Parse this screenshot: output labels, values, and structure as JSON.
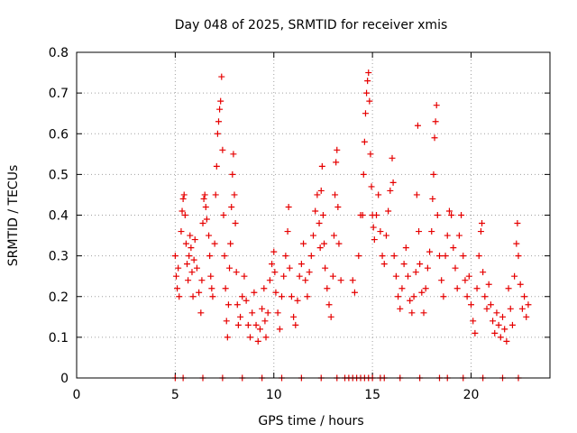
{
  "chart_data": {
    "type": "scatter",
    "title": "Day 048 of 2025, SRMTID for receiver xmis",
    "xlabel": "GPS time / hours",
    "ylabel": "SRMTID / TECUs",
    "xlim": [
      0,
      24
    ],
    "ylim": [
      0,
      0.8
    ],
    "xticks": [
      0,
      5,
      10,
      15,
      20
    ],
    "yticks": [
      0,
      0.1,
      0.2,
      0.3,
      0.4,
      0.5,
      0.6,
      0.7,
      0.8
    ],
    "xtick_labels": [
      "0",
      "5",
      "10",
      "15",
      "20"
    ],
    "ytick_labels": [
      "0",
      "0.1",
      "0.2",
      "0.3",
      "0.4",
      "0.5",
      "0.6",
      "0.7",
      "0.8"
    ],
    "grid": true,
    "marker": "+",
    "color": "#e60000",
    "series": [
      {
        "name": "SRMTID",
        "points": [
          [
            5.0,
            0.3
          ],
          [
            5.05,
            0.25
          ],
          [
            5.1,
            0.22
          ],
          [
            5.15,
            0.27
          ],
          [
            5.2,
            0.2
          ],
          [
            5.3,
            0.36
          ],
          [
            5.35,
            0.41
          ],
          [
            5.4,
            0.44
          ],
          [
            5.45,
            0.45
          ],
          [
            5.5,
            0.4
          ],
          [
            5.55,
            0.33
          ],
          [
            5.6,
            0.28
          ],
          [
            5.65,
            0.24
          ],
          [
            5.7,
            0.3
          ],
          [
            5.75,
            0.35
          ],
          [
            5.8,
            0.32
          ],
          [
            5.85,
            0.26
          ],
          [
            5.9,
            0.2
          ],
          [
            5.95,
            0.29
          ],
          [
            6.0,
            0.34
          ],
          [
            6.1,
            0.27
          ],
          [
            6.2,
            0.21
          ],
          [
            6.3,
            0.16
          ],
          [
            6.35,
            0.24
          ],
          [
            6.4,
            0.38
          ],
          [
            6.45,
            0.44
          ],
          [
            6.5,
            0.45
          ],
          [
            6.55,
            0.42
          ],
          [
            6.6,
            0.39
          ],
          [
            6.7,
            0.35
          ],
          [
            6.75,
            0.3
          ],
          [
            6.8,
            0.25
          ],
          [
            6.85,
            0.22
          ],
          [
            6.9,
            0.2
          ],
          [
            7.0,
            0.33
          ],
          [
            7.05,
            0.45
          ],
          [
            7.1,
            0.52
          ],
          [
            7.15,
            0.6
          ],
          [
            7.2,
            0.63
          ],
          [
            7.25,
            0.66
          ],
          [
            7.3,
            0.68
          ],
          [
            7.35,
            0.74
          ],
          [
            7.4,
            0.56
          ],
          [
            7.45,
            0.4
          ],
          [
            7.5,
            0.3
          ],
          [
            7.55,
            0.22
          ],
          [
            7.6,
            0.14
          ],
          [
            7.65,
            0.1
          ],
          [
            7.7,
            0.18
          ],
          [
            7.75,
            0.27
          ],
          [
            7.8,
            0.33
          ],
          [
            7.85,
            0.42
          ],
          [
            7.9,
            0.5
          ],
          [
            7.95,
            0.55
          ],
          [
            8.0,
            0.45
          ],
          [
            8.05,
            0.38
          ],
          [
            8.1,
            0.26
          ],
          [
            8.15,
            0.18
          ],
          [
            8.2,
            0.13
          ],
          [
            8.3,
            0.15
          ],
          [
            8.4,
            0.2
          ],
          [
            8.5,
            0.25
          ],
          [
            8.6,
            0.19
          ],
          [
            8.7,
            0.13
          ],
          [
            8.8,
            0.1
          ],
          [
            8.9,
            0.16
          ],
          [
            9.0,
            0.21
          ],
          [
            9.1,
            0.13
          ],
          [
            9.2,
            0.09
          ],
          [
            9.3,
            0.12
          ],
          [
            9.4,
            0.17
          ],
          [
            9.5,
            0.22
          ],
          [
            9.55,
            0.14
          ],
          [
            9.6,
            0.1
          ],
          [
            9.7,
            0.16
          ],
          [
            9.8,
            0.24
          ],
          [
            9.9,
            0.28
          ],
          [
            10.0,
            0.31
          ],
          [
            10.05,
            0.26
          ],
          [
            10.1,
            0.21
          ],
          [
            10.2,
            0.16
          ],
          [
            10.3,
            0.12
          ],
          [
            10.4,
            0.2
          ],
          [
            10.5,
            0.25
          ],
          [
            10.6,
            0.3
          ],
          [
            10.7,
            0.36
          ],
          [
            10.75,
            0.42
          ],
          [
            10.8,
            0.27
          ],
          [
            10.9,
            0.2
          ],
          [
            11.0,
            0.15
          ],
          [
            11.1,
            0.13
          ],
          [
            11.2,
            0.19
          ],
          [
            11.3,
            0.25
          ],
          [
            11.4,
            0.28
          ],
          [
            11.5,
            0.33
          ],
          [
            11.6,
            0.24
          ],
          [
            11.7,
            0.2
          ],
          [
            11.8,
            0.26
          ],
          [
            11.9,
            0.3
          ],
          [
            12.0,
            0.35
          ],
          [
            12.1,
            0.41
          ],
          [
            12.2,
            0.45
          ],
          [
            12.3,
            0.38
          ],
          [
            12.35,
            0.32
          ],
          [
            12.4,
            0.46
          ],
          [
            12.45,
            0.52
          ],
          [
            12.5,
            0.4
          ],
          [
            12.55,
            0.33
          ],
          [
            12.6,
            0.27
          ],
          [
            12.7,
            0.22
          ],
          [
            12.8,
            0.18
          ],
          [
            12.9,
            0.15
          ],
          [
            13.0,
            0.25
          ],
          [
            13.05,
            0.35
          ],
          [
            13.1,
            0.45
          ],
          [
            13.15,
            0.53
          ],
          [
            13.2,
            0.56
          ],
          [
            13.25,
            0.42
          ],
          [
            13.3,
            0.33
          ],
          [
            13.4,
            0.24
          ],
          [
            14.0,
            0.24
          ],
          [
            14.1,
            0.21
          ],
          [
            14.3,
            0.3
          ],
          [
            14.4,
            0.4
          ],
          [
            14.5,
            0.4
          ],
          [
            14.55,
            0.5
          ],
          [
            14.6,
            0.58
          ],
          [
            14.65,
            0.65
          ],
          [
            14.7,
            0.7
          ],
          [
            14.75,
            0.73
          ],
          [
            14.8,
            0.75
          ],
          [
            14.85,
            0.68
          ],
          [
            14.9,
            0.55
          ],
          [
            14.95,
            0.47
          ],
          [
            15.0,
            0.4
          ],
          [
            15.05,
            0.37
          ],
          [
            15.1,
            0.34
          ],
          [
            15.2,
            0.4
          ],
          [
            15.3,
            0.45
          ],
          [
            15.4,
            0.36
          ],
          [
            15.5,
            0.3
          ],
          [
            15.6,
            0.28
          ],
          [
            15.7,
            0.35
          ],
          [
            15.8,
            0.41
          ],
          [
            15.9,
            0.46
          ],
          [
            16.0,
            0.54
          ],
          [
            16.05,
            0.48
          ],
          [
            16.1,
            0.3
          ],
          [
            16.2,
            0.25
          ],
          [
            16.3,
            0.2
          ],
          [
            16.4,
            0.17
          ],
          [
            16.5,
            0.22
          ],
          [
            16.6,
            0.28
          ],
          [
            16.7,
            0.32
          ],
          [
            16.8,
            0.25
          ],
          [
            16.9,
            0.19
          ],
          [
            17.0,
            0.16
          ],
          [
            17.1,
            0.2
          ],
          [
            17.2,
            0.26
          ],
          [
            17.25,
            0.45
          ],
          [
            17.3,
            0.62
          ],
          [
            17.35,
            0.36
          ],
          [
            17.4,
            0.28
          ],
          [
            17.5,
            0.21
          ],
          [
            17.6,
            0.16
          ],
          [
            17.7,
            0.22
          ],
          [
            17.8,
            0.27
          ],
          [
            17.9,
            0.31
          ],
          [
            18.0,
            0.36
          ],
          [
            18.05,
            0.44
          ],
          [
            18.1,
            0.5
          ],
          [
            18.15,
            0.59
          ],
          [
            18.2,
            0.63
          ],
          [
            18.25,
            0.67
          ],
          [
            18.3,
            0.4
          ],
          [
            18.4,
            0.3
          ],
          [
            18.5,
            0.24
          ],
          [
            18.6,
            0.2
          ],
          [
            18.7,
            0.3
          ],
          [
            18.8,
            0.35
          ],
          [
            18.9,
            0.41
          ],
          [
            19.0,
            0.4
          ],
          [
            19.1,
            0.32
          ],
          [
            19.2,
            0.27
          ],
          [
            19.3,
            0.22
          ],
          [
            19.4,
            0.35
          ],
          [
            19.5,
            0.4
          ],
          [
            19.6,
            0.3
          ],
          [
            19.7,
            0.24
          ],
          [
            19.8,
            0.2
          ],
          [
            19.9,
            0.25
          ],
          [
            20.0,
            0.18
          ],
          [
            20.1,
            0.14
          ],
          [
            20.2,
            0.11
          ],
          [
            20.3,
            0.22
          ],
          [
            20.4,
            0.3
          ],
          [
            20.5,
            0.36
          ],
          [
            20.55,
            0.38
          ],
          [
            20.6,
            0.26
          ],
          [
            20.7,
            0.2
          ],
          [
            20.8,
            0.17
          ],
          [
            20.9,
            0.23
          ],
          [
            21.0,
            0.18
          ],
          [
            21.1,
            0.14
          ],
          [
            21.2,
            0.11
          ],
          [
            21.3,
            0.16
          ],
          [
            21.4,
            0.13
          ],
          [
            21.5,
            0.1
          ],
          [
            21.6,
            0.15
          ],
          [
            21.7,
            0.12
          ],
          [
            21.8,
            0.09
          ],
          [
            21.9,
            0.22
          ],
          [
            22.0,
            0.17
          ],
          [
            22.1,
            0.13
          ],
          [
            22.2,
            0.25
          ],
          [
            22.3,
            0.33
          ],
          [
            22.35,
            0.38
          ],
          [
            22.4,
            0.3
          ],
          [
            22.5,
            0.23
          ],
          [
            22.6,
            0.17
          ],
          [
            22.7,
            0.2
          ],
          [
            22.8,
            0.15
          ],
          [
            22.9,
            0.18
          ],
          [
            5.0,
            0.0
          ],
          [
            5.4,
            0.0
          ],
          [
            6.4,
            0.0
          ],
          [
            7.4,
            0.0
          ],
          [
            8.4,
            0.0
          ],
          [
            9.4,
            0.0
          ],
          [
            10.4,
            0.0
          ],
          [
            11.4,
            0.0
          ],
          [
            12.4,
            0.0
          ],
          [
            13.2,
            0.0
          ],
          [
            13.6,
            0.0
          ],
          [
            13.8,
            0.0
          ],
          [
            14.0,
            0.0
          ],
          [
            14.2,
            0.0
          ],
          [
            14.4,
            0.0
          ],
          [
            14.6,
            0.0
          ],
          [
            14.8,
            0.0
          ],
          [
            15.0,
            0.0
          ],
          [
            15.4,
            0.0
          ],
          [
            15.6,
            0.0
          ],
          [
            16.4,
            0.0
          ],
          [
            17.4,
            0.0
          ],
          [
            18.4,
            0.0
          ],
          [
            18.8,
            0.0
          ],
          [
            19.6,
            0.0
          ],
          [
            20.6,
            0.0
          ],
          [
            21.6,
            0.0
          ],
          [
            22.4,
            0.0
          ]
        ]
      }
    ]
  }
}
